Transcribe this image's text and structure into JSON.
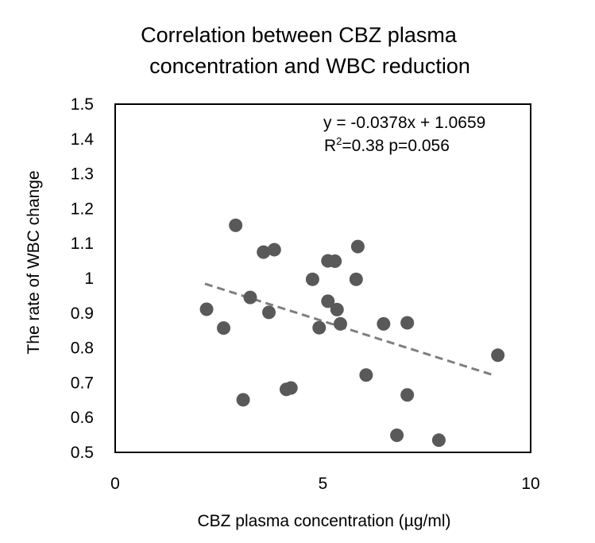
{
  "chart_data": {
    "type": "scatter",
    "title": "Correlation between CBZ plasma concentration and WBC reduction",
    "title_lines": [
      "Correlation between CBZ plasma",
      "concentration and WBC reduction"
    ],
    "xlabel": "CBZ plasma concentration (µg/ml)",
    "ylabel": "The rate of WBC change",
    "xlim": [
      0,
      10
    ],
    "ylim": [
      0.5,
      1.5
    ],
    "x_ticks": [
      0,
      5,
      10
    ],
    "x_tick_labels": [
      "0",
      "5",
      "10"
    ],
    "y_ticks": [
      0.5,
      0.6,
      0.7,
      0.8,
      0.9,
      1.0,
      1.1,
      1.2,
      1.3,
      1.4,
      1.5
    ],
    "y_tick_labels": [
      "0.5",
      "0.6",
      "0.7",
      "0.8",
      "0.9",
      "1",
      "1.1",
      "1.2",
      "1.3",
      "1.4",
      "1.5"
    ],
    "grid": false,
    "legend": "none",
    "marker_color": "#595959",
    "trendline_color": "#7f7f7f",
    "series": [
      {
        "name": "patients",
        "points": [
          {
            "x": 2.2,
            "y": 0.911
          },
          {
            "x": 2.61,
            "y": 0.857
          },
          {
            "x": 2.9,
            "y": 1.152
          },
          {
            "x": 3.08,
            "y": 0.651
          },
          {
            "x": 3.25,
            "y": 0.945
          },
          {
            "x": 3.57,
            "y": 1.075
          },
          {
            "x": 3.7,
            "y": 0.902
          },
          {
            "x": 3.83,
            "y": 1.082
          },
          {
            "x": 4.12,
            "y": 0.681
          },
          {
            "x": 4.23,
            "y": 0.685
          },
          {
            "x": 4.75,
            "y": 0.997
          },
          {
            "x": 4.91,
            "y": 0.858
          },
          {
            "x": 5.12,
            "y": 0.934
          },
          {
            "x": 5.12,
            "y": 1.05
          },
          {
            "x": 5.29,
            "y": 1.049
          },
          {
            "x": 5.34,
            "y": 0.91
          },
          {
            "x": 5.42,
            "y": 0.869
          },
          {
            "x": 5.8,
            "y": 0.997
          },
          {
            "x": 5.84,
            "y": 1.091
          },
          {
            "x": 6.04,
            "y": 0.722
          },
          {
            "x": 6.46,
            "y": 0.869
          },
          {
            "x": 6.78,
            "y": 0.549
          },
          {
            "x": 7.03,
            "y": 0.872
          },
          {
            "x": 7.03,
            "y": 0.665
          },
          {
            "x": 7.79,
            "y": 0.535
          },
          {
            "x": 9.21,
            "y": 0.779
          }
        ]
      }
    ],
    "trendline": {
      "type": "linear",
      "slope": -0.0378,
      "intercept": 1.0659,
      "x_range": [
        2.16,
        9.11
      ],
      "style": "dashed"
    },
    "annotations": {
      "equation": "y = -0.0378x + 1.0659",
      "r2_prefix": "R",
      "r2_sup": "2",
      "r2_rest": "=0.38 p=0.056"
    }
  }
}
